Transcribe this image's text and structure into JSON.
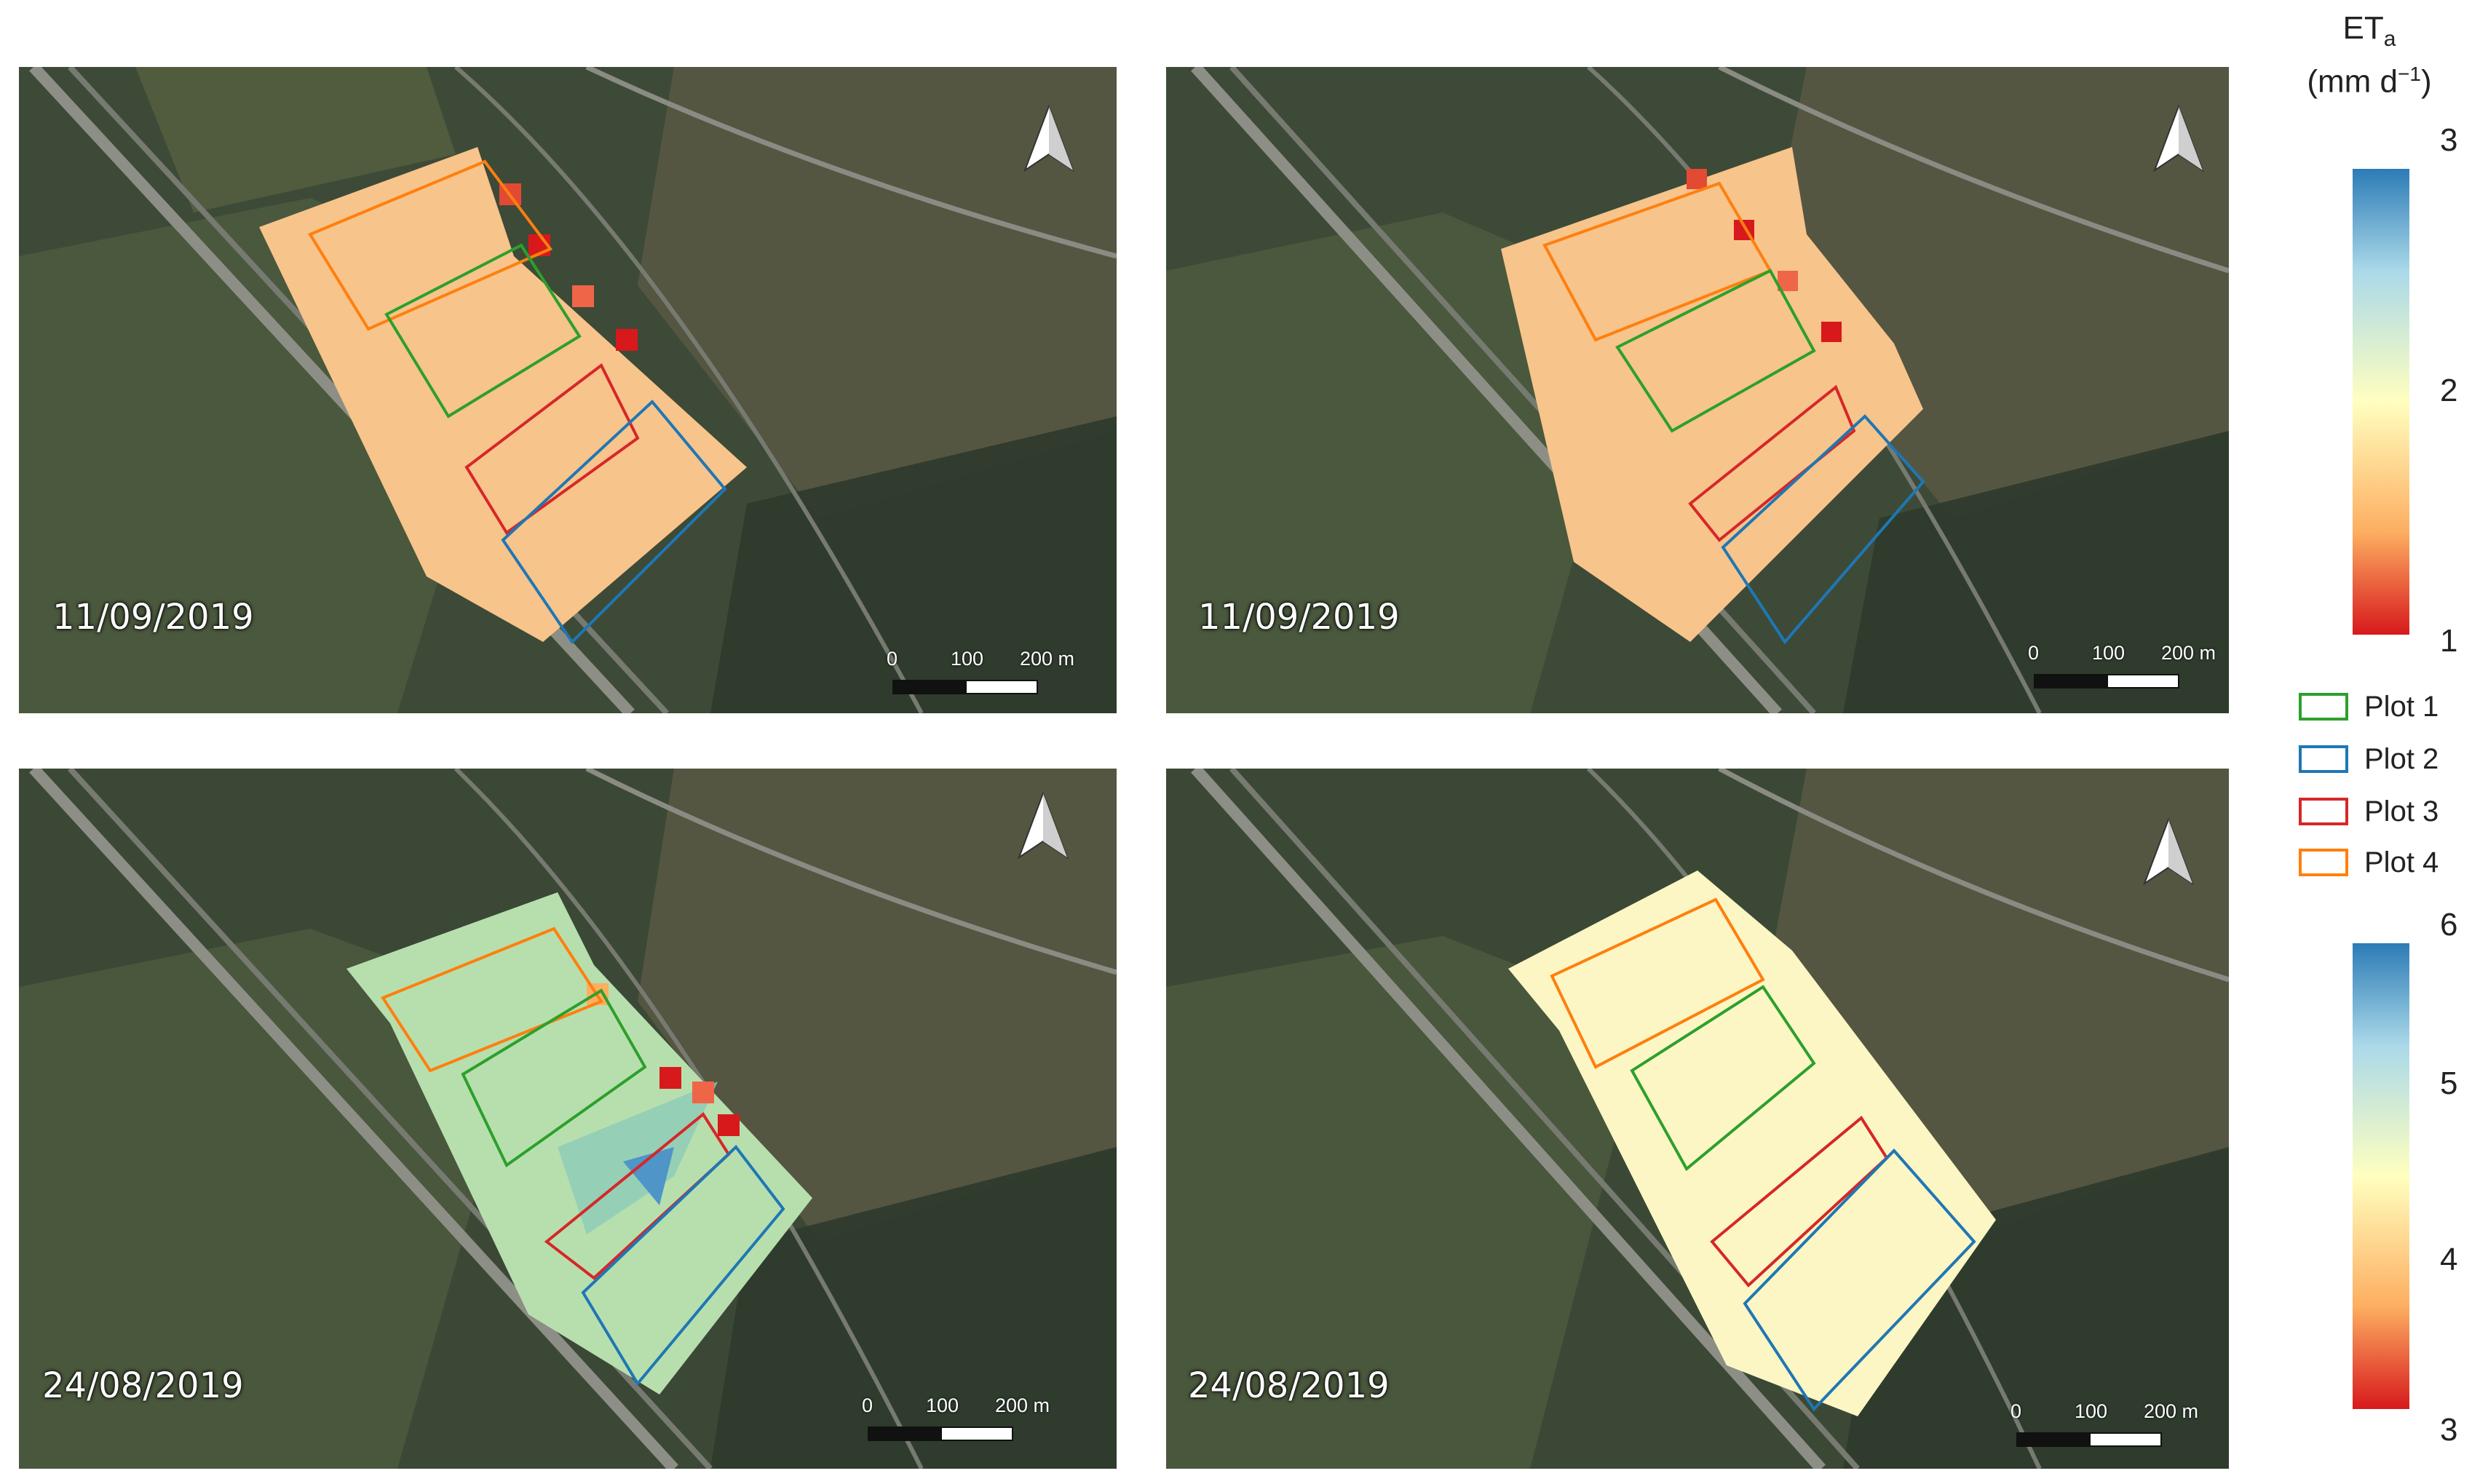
{
  "panels": [
    {
      "date": "11/09/2019",
      "scale_ticks": [
        "0",
        "100",
        "200 m"
      ]
    },
    {
      "date": "11/09/2019",
      "scale_ticks": [
        "0",
        "100",
        "200 m"
      ]
    },
    {
      "date": "24/08/2019",
      "scale_ticks": [
        "0",
        "100",
        "200 m"
      ]
    },
    {
      "date": "24/08/2019",
      "scale_ticks": [
        "0",
        "100",
        "200 m"
      ]
    }
  ],
  "legend": {
    "title_main": "ET",
    "title_sub": "a",
    "unit_open": "(mm d",
    "unit_sup": "−1",
    "unit_close": ")",
    "ramp_top": {
      "ticks": [
        "3",
        "2",
        "1"
      ]
    },
    "ramp_bottom": {
      "ticks": [
        "6",
        "5",
        "4",
        "3"
      ]
    },
    "plots": [
      {
        "label": "Plot 1",
        "color": "#2ca02c"
      },
      {
        "label": "Plot 2",
        "color": "#1f77b4"
      },
      {
        "label": "Plot 3",
        "color": "#d62728"
      },
      {
        "label": "Plot 4",
        "color": "#ff7f0e"
      }
    ]
  },
  "ramp_colors": [
    "#2c7bb6",
    "#abd9e9",
    "#ffffbf",
    "#fdae61",
    "#d7191c"
  ],
  "icons": {
    "north_arrow": "north-arrow-icon"
  }
}
